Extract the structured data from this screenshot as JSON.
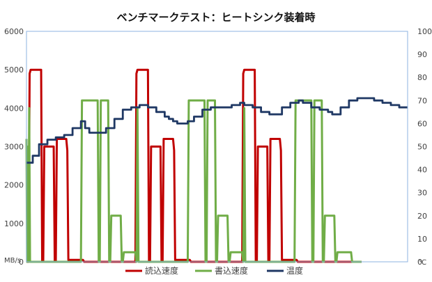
{
  "chart_data": {
    "type": "line",
    "title": "ベンチマークテスト：ヒートシンク装着時",
    "y_left": {
      "min": 0,
      "max": 6000,
      "step": 1000,
      "unit": "MB/s",
      "ticks": [
        "0",
        "1000",
        "2000",
        "3000",
        "4000",
        "5000",
        "6000"
      ]
    },
    "y_right": {
      "min": 0,
      "max": 100,
      "step": 10,
      "unit": "℃",
      "ticks": [
        "0",
        "10",
        "20",
        "30",
        "40",
        "50",
        "60",
        "70",
        "80",
        "90",
        "100"
      ]
    },
    "gridlines": false,
    "legend_position": "bottom",
    "x_count": 100,
    "series": [
      {
        "name": "読込速度",
        "color": "#c00000",
        "axis": "left",
        "segments": [
          [
            0,
            0
          ],
          [
            1,
            0
          ],
          [
            1.5,
            4900
          ],
          [
            2,
            5000
          ],
          [
            7,
            5000
          ],
          [
            7.5,
            0
          ],
          [
            8,
            0
          ],
          [
            8.5,
            3000
          ],
          [
            13,
            3000
          ],
          [
            13.5,
            0
          ],
          [
            14,
            0
          ],
          [
            14.5,
            3200
          ],
          [
            19,
            3200
          ],
          [
            19.5,
            2900
          ],
          [
            20,
            50
          ],
          [
            27,
            50
          ],
          [
            27.5,
            0
          ],
          [
            52,
            0
          ],
          [
            52.5,
            4900
          ],
          [
            53,
            5000
          ],
          [
            58,
            5000
          ],
          [
            58.5,
            0
          ],
          [
            59,
            0
          ],
          [
            59.5,
            3000
          ],
          [
            64,
            3000
          ],
          [
            64.5,
            0
          ],
          [
            65,
            0
          ],
          [
            65.5,
            3200
          ],
          [
            70,
            3200
          ],
          [
            70.5,
            2900
          ],
          [
            71,
            50
          ],
          [
            78,
            50
          ],
          [
            78.5,
            0
          ],
          [
            103,
            0
          ],
          [
            103.5,
            4900
          ],
          [
            104,
            5000
          ],
          [
            109,
            5000
          ],
          [
            109.5,
            0
          ],
          [
            110,
            0
          ],
          [
            110.5,
            3000
          ],
          [
            115,
            3000
          ],
          [
            115.5,
            0
          ],
          [
            116,
            0
          ],
          [
            116.5,
            3200
          ],
          [
            121,
            3200
          ],
          [
            121.5,
            2900
          ],
          [
            122,
            50
          ],
          [
            129,
            50
          ],
          [
            129.5,
            0
          ],
          [
            160,
            0
          ]
        ]
      },
      {
        "name": "書込速度",
        "color": "#70ad47",
        "axis": "left",
        "segments": [
          [
            0,
            3200
          ],
          [
            0.3,
            0
          ],
          [
            0.7,
            3000
          ],
          [
            1,
            0
          ],
          [
            1.3,
            4000
          ],
          [
            1.7,
            0
          ],
          [
            2,
            0
          ],
          [
            26,
            0
          ],
          [
            26.5,
            4200
          ],
          [
            34,
            4200
          ],
          [
            34.5,
            0
          ],
          [
            35,
            0
          ],
          [
            35.5,
            4200
          ],
          [
            39,
            4200
          ],
          [
            39.5,
            0
          ],
          [
            40,
            0
          ],
          [
            40.5,
            1200
          ],
          [
            45,
            1200
          ],
          [
            45.5,
            0
          ],
          [
            46,
            0
          ],
          [
            46.5,
            250
          ],
          [
            52,
            250
          ],
          [
            52.5,
            0
          ],
          [
            53,
            4000
          ],
          [
            53.5,
            0
          ],
          [
            77,
            0
          ],
          [
            77.5,
            4200
          ],
          [
            85,
            4200
          ],
          [
            85.5,
            0
          ],
          [
            86,
            0
          ],
          [
            86.5,
            4200
          ],
          [
            90,
            4200
          ],
          [
            90.5,
            0
          ],
          [
            91,
            0
          ],
          [
            91.5,
            1200
          ],
          [
            96,
            1200
          ],
          [
            96.5,
            0
          ],
          [
            97,
            0
          ],
          [
            97.5,
            250
          ],
          [
            103,
            250
          ],
          [
            103.5,
            0
          ],
          [
            104,
            4000
          ],
          [
            104.5,
            0
          ],
          [
            128,
            0
          ],
          [
            128.5,
            4200
          ],
          [
            136,
            4200
          ],
          [
            136.5,
            0
          ],
          [
            137,
            0
          ],
          [
            137.5,
            4200
          ],
          [
            141,
            4200
          ],
          [
            141.5,
            0
          ],
          [
            142,
            0
          ],
          [
            142.5,
            1200
          ],
          [
            147,
            1200
          ],
          [
            147.5,
            0
          ],
          [
            148,
            0
          ],
          [
            148.5,
            250
          ],
          [
            155,
            250
          ],
          [
            155.5,
            0
          ],
          [
            160,
            0
          ]
        ]
      },
      {
        "name": "温度",
        "color": "#1f3864",
        "axis": "right",
        "values": [
          [
            0,
            43
          ],
          [
            3,
            46
          ],
          [
            6,
            51
          ],
          [
            10,
            53
          ],
          [
            14,
            54
          ],
          [
            18,
            55
          ],
          [
            22,
            58
          ],
          [
            26,
            61
          ],
          [
            28,
            58
          ],
          [
            30,
            56
          ],
          [
            34,
            56
          ],
          [
            38,
            58
          ],
          [
            42,
            62
          ],
          [
            46,
            66
          ],
          [
            50,
            67
          ],
          [
            54,
            68
          ],
          [
            58,
            67
          ],
          [
            62,
            65
          ],
          [
            66,
            63
          ],
          [
            68,
            62
          ],
          [
            70,
            61
          ],
          [
            72,
            60
          ],
          [
            74,
            60
          ],
          [
            77,
            61
          ],
          [
            80,
            63
          ],
          [
            84,
            66
          ],
          [
            88,
            67
          ],
          [
            92,
            67
          ],
          [
            96,
            67
          ],
          [
            98,
            68
          ],
          [
            102,
            69
          ],
          [
            104,
            68
          ],
          [
            108,
            67
          ],
          [
            112,
            65
          ],
          [
            116,
            64
          ],
          [
            118,
            64
          ],
          [
            122,
            67
          ],
          [
            126,
            69
          ],
          [
            130,
            70
          ],
          [
            132,
            69
          ],
          [
            136,
            67
          ],
          [
            140,
            66
          ],
          [
            144,
            65
          ],
          [
            146,
            64
          ],
          [
            150,
            67
          ],
          [
            154,
            70
          ],
          [
            156,
            70
          ],
          [
            158,
            71
          ],
          [
            162,
            71
          ],
          [
            166,
            70
          ],
          [
            170,
            69
          ],
          [
            174,
            68
          ],
          [
            178,
            67
          ],
          [
            182,
            67
          ]
        ]
      }
    ]
  }
}
